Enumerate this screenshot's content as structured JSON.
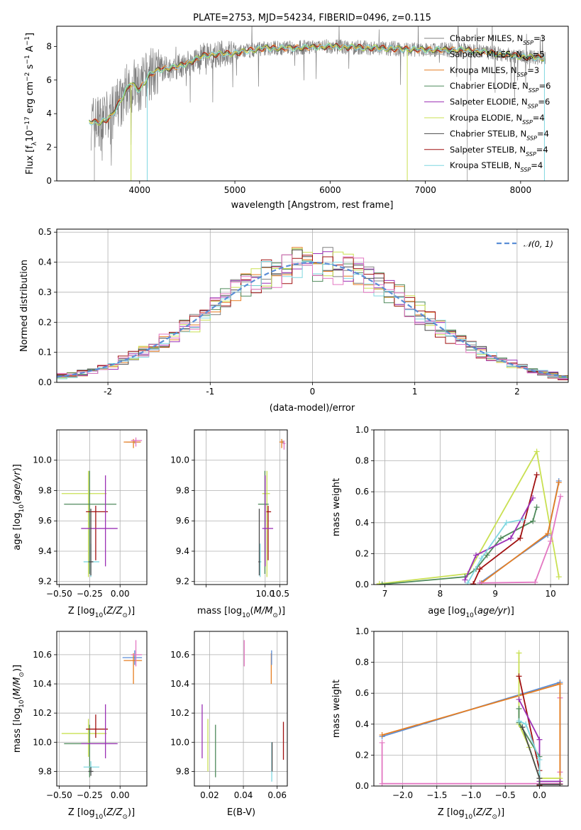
{
  "colors": {
    "Chabrier MILES": "#808080",
    "Salpeter MILES": "#a8a8a8",
    "Kroupa MILES": "#e67e22",
    "Chabrier ELODIE": "#4f8a5b",
    "Salpeter ELODIE": "#9b30b5",
    "Kroupa ELODIE": "#c9e052",
    "Chabrier STELIB": "#4a4a4a",
    "Salpeter STELIB": "#a01010",
    "Kroupa STELIB": "#7fd7e0",
    "pink": "#e377c2",
    "blue": "#5b8ed6",
    "normal": "#5b8ed6"
  },
  "chart_data": [
    {
      "id": "spectrum",
      "type": "line",
      "title": "PLATE=2753, MJD=54234, FIBERID=0496, z=0.115",
      "xlabel": "wavelength [Angstrom, rest frame]",
      "ylabel": "Flux [fλ10⁻¹⁷ erg cm⁻² s⁻¹ A⁻¹]",
      "xlim": [
        3130,
        8500
      ],
      "ylim": [
        0,
        9.2
      ],
      "xticks": [
        4000,
        5000,
        6000,
        7000,
        8000
      ],
      "yticks": [
        0,
        2,
        4,
        6,
        8
      ],
      "legend_location": "upper right",
      "grid": false,
      "legend": [
        {
          "label": "Chabrier MILES, N",
          "sub": "SSP",
          "n": "=3"
        },
        {
          "label": "Salpeter MILES, N",
          "sub": "SSP",
          "n": "=5"
        },
        {
          "label": "Kroupa MILES, N",
          "sub": "SSP",
          "n": "=3"
        },
        {
          "label": "Chabrier ELODIE, N",
          "sub": "SSP",
          "n": "=6"
        },
        {
          "label": "Salpeter ELODIE, N",
          "sub": "SSP",
          "n": "=6"
        },
        {
          "label": "Kroupa ELODIE, N",
          "sub": "SSP",
          "n": "=4"
        },
        {
          "label": "Chabrier STELIB, N",
          "sub": "SSP",
          "n": "=4"
        },
        {
          "label": "Salpeter STELIB, N",
          "sub": "SSP",
          "n": "=4"
        },
        {
          "label": "Kroupa STELIB, N",
          "sub": "SSP",
          "n": "=4"
        }
      ],
      "continuum": {
        "x": [
          3500,
          3600,
          3700,
          3800,
          3900,
          4000,
          4100,
          4200,
          4300,
          4400,
          4500,
          4700,
          5000,
          5300,
          5600,
          6000,
          6500,
          7000,
          7400,
          7700,
          8000,
          8250
        ],
        "y": [
          3.5,
          3.5,
          3.8,
          4.8,
          5.8,
          5.4,
          6.3,
          6.6,
          6.7,
          6.8,
          7.0,
          7.5,
          7.6,
          7.9,
          7.9,
          8.0,
          7.9,
          7.8,
          7.8,
          7.6,
          7.4,
          7.3
        ]
      },
      "model_cutoffs": [
        {
          "series": "Salpeter MILES",
          "xmin": 3525,
          "xmax": 7440
        },
        {
          "series": "Kroupa ELODIE",
          "xmin": 3910,
          "xmax": 6810
        },
        {
          "series": "Kroupa STELIB",
          "xmin": 4080,
          "xmax": 8250
        }
      ]
    },
    {
      "id": "residuals",
      "type": "histogram",
      "xlabel": "(data-model)/error",
      "ylabel": "Normed distribution",
      "xlim": [
        -2.5,
        2.5
      ],
      "ylim": [
        0,
        0.51
      ],
      "xticks": [
        -2,
        -1,
        0,
        1,
        2
      ],
      "yticks": [
        0.0,
        0.1,
        0.2,
        0.3,
        0.4,
        0.5
      ],
      "grid": true,
      "bin_width": 0.1,
      "legend": [
        {
          "label": "𝒩(0, 1)",
          "style": "dashed"
        }
      ],
      "reference_curve": "normal(0,1)",
      "peak_values": [
        0.41,
        0.49,
        0.45,
        0.42,
        0.46
      ]
    },
    {
      "id": "age_vs_Z",
      "type": "errorbar",
      "xlabel": "Z [log₁₀(Z/Z⊙)]",
      "ylabel": "age  [log₁₀(age/yr)]",
      "xlim": [
        -0.52,
        0.22
      ],
      "ylim": [
        9.18,
        10.2
      ],
      "xticks": [
        -0.5,
        -0.25,
        0.0
      ],
      "xticklabels": [
        "−0.50",
        "−0.25",
        "0.00"
      ],
      "yticks": [
        9.2,
        9.4,
        9.6,
        9.8,
        10.0
      ],
      "grid": true,
      "points": [
        {
          "series": "Kroupa ELODIE",
          "x": -0.26,
          "xerr": [
            0.22,
            0.15
          ],
          "y": 9.78,
          "yerr": [
            0.55,
            0.15
          ]
        },
        {
          "series": "Chabrier ELODIE",
          "x": -0.25,
          "xerr": [
            0.21,
            0.22
          ],
          "y": 9.71,
          "yerr": [
            0.46,
            0.22
          ]
        },
        {
          "series": "Salpeter STELIB",
          "x": -0.2,
          "xerr": [
            0.08,
            0.1
          ],
          "y": 9.66,
          "yerr": [
            0.32,
            0.04
          ]
        },
        {
          "series": "Salpeter ELODIE",
          "x": -0.12,
          "xerr": [
            0.2,
            0.1
          ],
          "y": 9.55,
          "yerr": [
            0.25,
            0.35
          ]
        },
        {
          "series": "Kroupa STELIB",
          "x": -0.24,
          "xerr": [
            0.06,
            0.07
          ],
          "y": 9.33,
          "yerr": [
            0.1,
            0.12
          ]
        },
        {
          "series": "Chabrier STELIB",
          "x": -0.24,
          "xerr": [
            0.02,
            0.02
          ],
          "y": 9.33,
          "yerr": [
            0.09,
            0.35
          ]
        },
        {
          "series": "Salpeter MILES",
          "x": 0.12,
          "xerr": [
            0.07,
            0.05
          ],
          "y": 10.12,
          "yerr": [
            0.01,
            0.01
          ]
        },
        {
          "series": "Kroupa MILES",
          "x": 0.11,
          "xerr": [
            0.08,
            0.06
          ],
          "y": 10.12,
          "yerr": [
            0.04,
            0.02
          ]
        },
        {
          "series": "pink",
          "x": 0.13,
          "xerr": [
            0.04,
            0.05
          ],
          "y": 10.13,
          "yerr": [
            0.04,
            0.02
          ]
        }
      ]
    },
    {
      "id": "age_vs_mass",
      "type": "errorbar",
      "xlabel": "mass [log₁₀(M/M⊙)]",
      "ylabel": "",
      "xlim": [
        7.6,
        10.75
      ],
      "ylim": [
        9.18,
        10.2
      ],
      "xticks": [
        8.0,
        10.0,
        10.5
      ],
      "xticklabels": [
        "",
        "10.0",
        "10.5"
      ],
      "yticks": [
        9.2,
        9.4,
        9.6,
        9.8,
        10.0
      ],
      "grid": true,
      "points": [
        {
          "series": "Kroupa ELODIE",
          "x": 10.06,
          "xerr": [
            0.16,
            0.1
          ],
          "y": 9.78,
          "yerr": [
            0.55,
            0.15
          ]
        },
        {
          "series": "Chabrier ELODIE",
          "x": 9.99,
          "xerr": [
            0.23,
            0.13
          ],
          "y": 9.71,
          "yerr": [
            0.46,
            0.22
          ]
        },
        {
          "series": "Salpeter STELIB",
          "x": 10.1,
          "xerr": [
            0.06,
            0.1
          ],
          "y": 9.66,
          "yerr": [
            0.32,
            0.04
          ]
        },
        {
          "series": "Salpeter ELODIE",
          "x": 10.0,
          "xerr": [
            0.1,
            0.27
          ],
          "y": 9.55,
          "yerr": [
            0.25,
            0.35
          ]
        },
        {
          "series": "Kroupa STELIB",
          "x": 9.83,
          "xerr": [
            0.04,
            0.04
          ],
          "y": 9.33,
          "yerr": [
            0.1,
            0.12
          ]
        },
        {
          "series": "Chabrier STELIB",
          "x": 9.8,
          "xerr": [
            0.03,
            0.03
          ],
          "y": 9.33,
          "yerr": [
            0.09,
            0.35
          ]
        },
        {
          "series": "Salpeter MILES",
          "x": 10.6,
          "xerr": [
            0.05,
            0.04
          ],
          "y": 10.12,
          "yerr": [
            0.01,
            0.01
          ]
        },
        {
          "series": "Kroupa MILES",
          "x": 10.56,
          "xerr": [
            0.08,
            0.05
          ],
          "y": 10.12,
          "yerr": [
            0.04,
            0.02
          ]
        },
        {
          "series": "pink",
          "x": 10.64,
          "xerr": [
            0.04,
            0.05
          ],
          "y": 10.11,
          "yerr": [
            0.04,
            0.02
          ]
        }
      ]
    },
    {
      "id": "massweight_vs_age",
      "type": "line",
      "xlabel": "age  [log₁₀(age/yr)]",
      "ylabel": "mass weight",
      "xlim": [
        6.8,
        10.32
      ],
      "ylim": [
        0,
        1.0
      ],
      "xticks": [
        7,
        8,
        9,
        10
      ],
      "yticks": [
        0.0,
        0.2,
        0.4,
        0.6,
        0.8,
        1.0
      ],
      "grid": true,
      "series": [
        {
          "name": "Kroupa ELODIE",
          "x": [
            6.9,
            8.5,
            9.75,
            10.15
          ],
          "y": [
            0.005,
            0.07,
            0.86,
            0.05
          ]
        },
        {
          "name": "Chabrier ELODIE",
          "x": [
            6.95,
            8.45,
            8.65,
            8.85,
            9.1,
            9.68,
            9.75
          ],
          "y": [
            0.002,
            0.05,
            0.1,
            0.19,
            0.3,
            0.41,
            0.5
          ]
        },
        {
          "name": "Salpeter STELIB",
          "x": [
            8.6,
            8.72,
            9.45,
            9.75
          ],
          "y": [
            0.004,
            0.1,
            0.3,
            0.71
          ]
        },
        {
          "name": "Salpeter ELODIE",
          "x": [
            8.45,
            8.65,
            9.28,
            9.68
          ],
          "y": [
            0.03,
            0.19,
            0.3,
            0.56
          ]
        },
        {
          "name": "Kroupa STELIB",
          "x": [
            8.5,
            8.75,
            9.2,
            9.5
          ],
          "y": [
            0.01,
            0.17,
            0.4,
            0.42
          ]
        },
        {
          "name": "blue",
          "x": [
            8.72,
            9.95,
            10.15
          ],
          "y": [
            0.01,
            0.32,
            0.67
          ]
        },
        {
          "name": "Kroupa MILES",
          "x": [
            8.75,
            9.95,
            10.15
          ],
          "y": [
            0.01,
            0.33,
            0.66
          ]
        },
        {
          "name": "pink",
          "x": [
            8.72,
            9.72,
            10.0,
            10.18
          ],
          "y": [
            0.01,
            0.015,
            0.28,
            0.57
          ]
        }
      ]
    },
    {
      "id": "mass_vs_Z",
      "type": "errorbar",
      "xlabel": "Z [log₁₀(Z/Z⊙)]",
      "ylabel": "mass [log₁₀(M/M⊙)]",
      "xlim": [
        -0.52,
        0.22
      ],
      "ylim": [
        9.7,
        10.76
      ],
      "xticks": [
        -0.5,
        -0.25,
        0.0
      ],
      "xticklabels": [
        "−0.50",
        "−0.25",
        "0.00"
      ],
      "yticks": [
        9.8,
        10.0,
        10.2,
        10.4,
        10.6
      ],
      "grid": true,
      "points": [
        {
          "series": "Kroupa ELODIE",
          "x": -0.26,
          "xerr": [
            0.22,
            0.15
          ],
          "y": 10.06,
          "yerr": [
            0.16,
            0.1
          ]
        },
        {
          "series": "Chabrier ELODIE",
          "x": -0.25,
          "xerr": [
            0.21,
            0.22
          ],
          "y": 9.99,
          "yerr": [
            0.23,
            0.13
          ]
        },
        {
          "series": "Salpeter STELIB",
          "x": -0.2,
          "xerr": [
            0.08,
            0.1
          ],
          "y": 10.09,
          "yerr": [
            0.06,
            0.1
          ]
        },
        {
          "series": "Salpeter ELODIE",
          "x": -0.12,
          "xerr": [
            0.2,
            0.1
          ],
          "y": 9.99,
          "yerr": [
            0.1,
            0.27
          ]
        },
        {
          "series": "Kroupa STELIB",
          "x": -0.24,
          "xerr": [
            0.06,
            0.07
          ],
          "y": 9.83,
          "yerr": [
            0.04,
            0.04
          ]
        },
        {
          "series": "Chabrier STELIB",
          "x": -0.24,
          "xerr": [
            0.02,
            0.02
          ],
          "y": 9.8,
          "yerr": [
            0.03,
            0.03
          ]
        },
        {
          "series": "blue",
          "x": 0.12,
          "xerr": [
            0.1,
            0.06
          ],
          "y": 10.58,
          "yerr": [
            0.05,
            0.05
          ]
        },
        {
          "series": "Kroupa MILES",
          "x": 0.11,
          "xerr": [
            0.08,
            0.07
          ],
          "y": 10.56,
          "yerr": [
            0.16,
            0.05
          ]
        },
        {
          "series": "pink",
          "x": 0.13,
          "xerr": [
            0.04,
            0.05
          ],
          "y": 10.6,
          "yerr": [
            0.08,
            0.1
          ]
        }
      ]
    },
    {
      "id": "mass_vs_ebv",
      "type": "errorbar",
      "xlabel": "E(B-V)",
      "ylabel": "",
      "xlim": [
        0.011,
        0.066
      ],
      "ylim": [
        9.7,
        10.76
      ],
      "xticks": [
        0.02,
        0.04,
        0.06
      ],
      "yticks": [
        9.8,
        10.0,
        10.2,
        10.4,
        10.6
      ],
      "grid": true,
      "points": [
        {
          "series": "Salpeter ELODIE",
          "x": 0.0156,
          "xerr": [
            0,
            0
          ],
          "y": 9.99,
          "yerr": [
            0.1,
            0.27
          ]
        },
        {
          "series": "Kroupa ELODIE",
          "x": 0.019,
          "xerr": [
            0,
            0
          ],
          "y": 10.06,
          "yerr": [
            0.26,
            0.1
          ]
        },
        {
          "series": "Chabrier ELODIE",
          "x": 0.0235,
          "xerr": [
            0,
            0
          ],
          "y": 9.99,
          "yerr": [
            0.23,
            0.13
          ]
        },
        {
          "series": "pink",
          "x": 0.0405,
          "xerr": [
            0,
            0
          ],
          "y": 10.6,
          "yerr": [
            0.08,
            0.1
          ]
        },
        {
          "series": "Kroupa MILES",
          "x": 0.0565,
          "xerr": [
            0,
            0
          ],
          "y": 10.56,
          "yerr": [
            0.16,
            0.05
          ]
        },
        {
          "series": "blue",
          "x": 0.0567,
          "xerr": [
            0,
            0
          ],
          "y": 10.58,
          "yerr": [
            0.05,
            0.05
          ]
        },
        {
          "series": "Kroupa STELIB",
          "x": 0.0568,
          "xerr": [
            0,
            0
          ],
          "y": 9.83,
          "yerr": [
            0.1,
            0.17
          ]
        },
        {
          "series": "Chabrier STELIB",
          "x": 0.057,
          "xerr": [
            0,
            0
          ],
          "y": 9.9,
          "yerr": [
            0.1,
            0.1
          ]
        },
        {
          "series": "Salpeter STELIB",
          "x": 0.0637,
          "xerr": [
            0,
            0
          ],
          "y": 10.0,
          "yerr": [
            0.12,
            0.14
          ]
        }
      ]
    },
    {
      "id": "massweight_vs_Z",
      "type": "line",
      "xlabel": "Z [log₁₀(Z/Z⊙)]",
      "ylabel": "mass weight",
      "xlim": [
        -2.42,
        0.42
      ],
      "ylim": [
        0,
        1.0
      ],
      "xticks": [
        -2.0,
        -1.5,
        -1.0,
        -0.5,
        0.0
      ],
      "xticklabels": [
        "−2.0",
        "−1.5",
        "−1.0",
        "−0.5",
        "0.0"
      ],
      "yticks": [
        0.0,
        0.2,
        0.4,
        0.6,
        0.8,
        1.0
      ],
      "grid": true,
      "series": [
        {
          "name": "pink",
          "x": [
            -2.3,
            -2.3,
            0.3,
            0.3,
            0.3
          ],
          "y": [
            0.28,
            0.015,
            0.015,
            0.09,
            0.57
          ]
        },
        {
          "name": "blue",
          "x": [
            -2.3,
            0.3,
            0.3
          ],
          "y": [
            0.32,
            0.67,
            0.01
          ]
        },
        {
          "name": "Kroupa MILES",
          "x": [
            -2.3,
            0.3,
            0.3
          ],
          "y": [
            0.33,
            0.66,
            0.01
          ]
        },
        {
          "name": "Kroupa ELODIE",
          "x": [
            -0.3,
            -0.3,
            -0.15,
            0.0,
            0.3
          ],
          "y": [
            0.86,
            0.4,
            0.25,
            0.05,
            0.05
          ]
        },
        {
          "name": "Salpeter STELIB",
          "x": [
            -0.3,
            0.0,
            0.0
          ],
          "y": [
            0.71,
            0.1,
            0.004
          ]
        },
        {
          "name": "Salpeter ELODIE",
          "x": [
            -0.3,
            0.0,
            0.0,
            0.3
          ],
          "y": [
            0.56,
            0.3,
            0.03,
            0.03
          ]
        },
        {
          "name": "Chabrier ELODIE",
          "x": [
            -0.3,
            -0.3,
            0.0,
            0.0
          ],
          "y": [
            0.5,
            0.41,
            0.19,
            0.0
          ]
        },
        {
          "name": "Kroupa STELIB",
          "x": [
            -0.3,
            -0.2,
            0.0,
            0.0
          ],
          "y": [
            0.42,
            0.4,
            0.17,
            0.01
          ]
        },
        {
          "name": "Chabrier STELIB",
          "x": [
            -0.25,
            0.0,
            0.0,
            0.3
          ],
          "y": [
            0.38,
            0.05,
            0.01,
            0.01
          ]
        }
      ]
    }
  ]
}
